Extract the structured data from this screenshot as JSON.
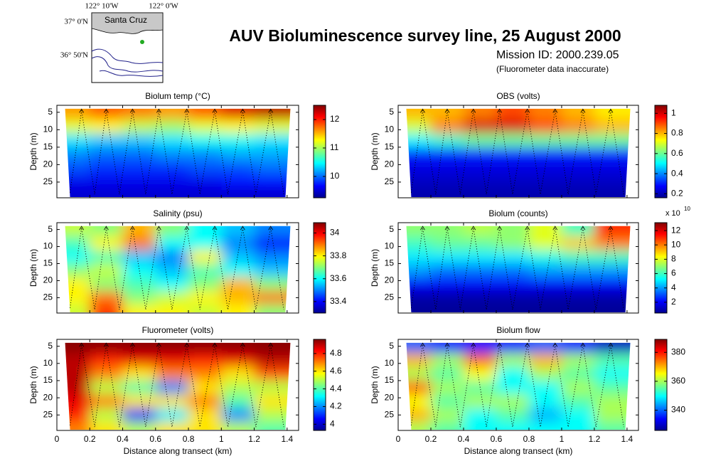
{
  "title": "AUV Bioluminescence survey line, 25 August 2000",
  "mission_id": "Mission ID: 2000.239.05",
  "note": "(Fluorometer data inaccurate)",
  "map": {
    "lon_labels": [
      "122° 10'W",
      "122° 0'W"
    ],
    "lat_labels": [
      "37° 0'N",
      "36° 50'N"
    ],
    "place": "Santa Cruz"
  },
  "chart_data": [
    {
      "type": "heatmap",
      "title": "Biolum temp (°C)",
      "ylabel": "Depth (m)",
      "colormap": "jet",
      "xlim": [
        0,
        1.47
      ],
      "ylim": [
        29.5,
        3
      ],
      "xticks": [
        0,
        0.2,
        0.4,
        0.6,
        0.8,
        1,
        1.2,
        1.4
      ],
      "yticks": [
        5,
        10,
        15,
        20,
        25
      ],
      "clim": [
        9.25,
        12.5
      ],
      "cticks": [
        10,
        11,
        12
      ],
      "x": [
        0.1,
        0.3,
        0.5,
        0.7,
        0.9,
        1.1,
        1.3
      ],
      "y": [
        5,
        9,
        13,
        17,
        21,
        25,
        29
      ],
      "z": [
        [
          11.6,
          11.8,
          11.7,
          11.6,
          11.8,
          12.2,
          12.3
        ],
        [
          11.2,
          11.3,
          11.1,
          11.0,
          11.2,
          11.3,
          11.2
        ],
        [
          10.4,
          10.3,
          10.3,
          10.4,
          10.5,
          10.5,
          10.4
        ],
        [
          10.1,
          10.0,
          10.0,
          10.1,
          10.1,
          10.2,
          10.2
        ],
        [
          9.9,
          9.8,
          9.8,
          9.8,
          9.9,
          9.9,
          10.0
        ],
        [
          9.6,
          9.6,
          9.6,
          9.6,
          9.6,
          9.7,
          9.7
        ],
        [
          9.5,
          9.5,
          9.5,
          9.5,
          9.5,
          9.5,
          9.5
        ]
      ]
    },
    {
      "type": "heatmap",
      "title": "OBS (volts)",
      "ylabel": "Depth (m)",
      "colormap": "jet",
      "xlim": [
        0,
        1.47
      ],
      "ylim": [
        29.5,
        3
      ],
      "xticks": [
        0,
        0.2,
        0.4,
        0.6,
        0.8,
        1,
        1.2,
        1.4
      ],
      "yticks": [
        5,
        10,
        15,
        20,
        25
      ],
      "clim": [
        0.16,
        1.08
      ],
      "cticks": [
        0.2,
        0.4,
        0.6,
        0.8,
        1
      ],
      "x": [
        0.1,
        0.3,
        0.5,
        0.7,
        0.9,
        1.1,
        1.3
      ],
      "y": [
        5,
        9,
        13,
        17,
        21,
        25,
        29
      ],
      "z": [
        [
          0.8,
          0.8,
          0.85,
          0.9,
          0.85,
          0.8,
          0.75
        ],
        [
          0.7,
          0.85,
          1.0,
          1.0,
          0.9,
          0.85,
          0.8
        ],
        [
          0.5,
          0.55,
          0.6,
          0.6,
          0.6,
          0.6,
          0.6
        ],
        [
          0.3,
          0.3,
          0.3,
          0.3,
          0.3,
          0.3,
          0.3
        ],
        [
          0.25,
          0.25,
          0.25,
          0.25,
          0.25,
          0.25,
          0.25
        ],
        [
          0.22,
          0.22,
          0.22,
          0.22,
          0.22,
          0.22,
          0.22
        ],
        [
          0.2,
          0.2,
          0.2,
          0.2,
          0.2,
          0.2,
          0.2
        ]
      ]
    },
    {
      "type": "heatmap",
      "title": "Salinity (psu)",
      "ylabel": "Depth (m)",
      "colormap": "jet",
      "xlim": [
        0,
        1.47
      ],
      "ylim": [
        29.5,
        3
      ],
      "xticks": [
        0,
        0.2,
        0.4,
        0.6,
        0.8,
        1,
        1.2,
        1.4
      ],
      "yticks": [
        5,
        10,
        15,
        20,
        25
      ],
      "clim": [
        33.3,
        34.09
      ],
      "cticks": [
        33.4,
        33.6,
        33.8,
        34
      ],
      "x": [
        0.1,
        0.3,
        0.5,
        0.7,
        0.9,
        1.1,
        1.3
      ],
      "y": [
        5,
        9,
        13,
        17,
        21,
        25,
        29
      ],
      "z": [
        [
          33.75,
          33.7,
          33.85,
          33.7,
          33.6,
          33.55,
          33.5
        ],
        [
          33.65,
          33.8,
          33.9,
          33.6,
          33.6,
          33.5,
          33.4
        ],
        [
          33.6,
          33.65,
          33.55,
          33.5,
          33.8,
          33.55,
          33.5
        ],
        [
          33.7,
          33.75,
          33.6,
          33.55,
          33.65,
          33.6,
          33.55
        ],
        [
          33.8,
          33.7,
          33.65,
          33.6,
          33.7,
          33.85,
          33.7
        ],
        [
          33.8,
          33.9,
          33.7,
          33.75,
          33.8,
          33.85,
          33.9
        ],
        [
          33.75,
          33.95,
          33.8,
          33.8,
          33.75,
          33.8,
          33.7
        ]
      ]
    },
    {
      "type": "heatmap",
      "title": "Biolum (counts)",
      "ylabel": "Depth (m)",
      "colormap": "jet",
      "xlim": [
        0,
        1.47
      ],
      "ylim": [
        29.5,
        3
      ],
      "xticks": [
        0,
        0.2,
        0.4,
        0.6,
        0.8,
        1,
        1.2,
        1.4
      ],
      "yticks": [
        5,
        10,
        15,
        20,
        25
      ],
      "clim": [
        0.5,
        13.1
      ],
      "cticks": [
        2,
        4,
        6,
        8,
        10,
        12
      ],
      "multiplier": "x 10",
      "multiplier_power": "10",
      "x": [
        0.1,
        0.3,
        0.5,
        0.7,
        0.9,
        1.1,
        1.3
      ],
      "y": [
        5,
        9,
        13,
        17,
        21,
        25,
        29
      ],
      "z": [
        [
          7,
          7,
          7.5,
          7,
          8,
          6,
          11
        ],
        [
          6,
          6.5,
          6.5,
          7,
          8,
          9,
          10
        ],
        [
          5,
          5,
          5,
          5,
          5.5,
          6,
          6
        ],
        [
          4,
          3.5,
          3.5,
          3.5,
          4,
          4,
          4
        ],
        [
          2,
          2,
          2,
          2,
          2,
          2,
          2
        ],
        [
          1,
          1,
          1,
          1,
          1,
          1,
          1
        ],
        [
          0.8,
          0.8,
          0.8,
          0.8,
          0.8,
          0.8,
          0.8
        ]
      ]
    },
    {
      "type": "heatmap",
      "title": "Fluorometer (volts)",
      "ylabel": "Depth (m)",
      "xlabel": "Distance along transect (km)",
      "colormap": "jet",
      "xlim": [
        0,
        1.47
      ],
      "ylim": [
        29.5,
        3
      ],
      "xticks": [
        0,
        0.2,
        0.4,
        0.6,
        0.8,
        1,
        1.2,
        1.4
      ],
      "yticks": [
        5,
        10,
        15,
        20,
        25
      ],
      "clim": [
        3.93,
        4.96
      ],
      "cticks": [
        4,
        4.2,
        4.4,
        4.6,
        4.8
      ],
      "x": [
        0.1,
        0.3,
        0.5,
        0.7,
        0.9,
        1.1,
        1.3
      ],
      "y": [
        5,
        9,
        13,
        17,
        21,
        25,
        29
      ],
      "z": [
        [
          4.95,
          4.95,
          4.95,
          4.95,
          4.95,
          4.95,
          4.95
        ],
        [
          4.9,
          4.8,
          4.85,
          4.85,
          4.8,
          4.85,
          4.9
        ],
        [
          4.9,
          4.7,
          4.6,
          4.7,
          4.7,
          4.6,
          4.75
        ],
        [
          4.9,
          4.5,
          4.4,
          4.2,
          4.6,
          4.5,
          4.5
        ],
        [
          4.85,
          4.7,
          4.6,
          4.6,
          4.7,
          4.4,
          4.6
        ],
        [
          4.8,
          4.5,
          4.1,
          4.3,
          4.6,
          4.2,
          4.5
        ],
        [
          4.7,
          4.6,
          4.5,
          4.6,
          4.6,
          4.5,
          4.4
        ]
      ]
    },
    {
      "type": "heatmap",
      "title": "Biolum flow",
      "ylabel": "Depth (m)",
      "xlabel": "Distance along transect (km)",
      "colormap": "jet",
      "xlim": [
        0,
        1.47
      ],
      "ylim": [
        29.5,
        3
      ],
      "xticks": [
        0,
        0.2,
        0.4,
        0.6,
        0.8,
        1,
        1.2,
        1.4
      ],
      "yticks": [
        5,
        10,
        15,
        20,
        25
      ],
      "clim": [
        326,
        389
      ],
      "cticks": [
        340,
        360,
        380
      ],
      "x": [
        0.1,
        0.3,
        0.5,
        0.7,
        0.9,
        1.1,
        1.3
      ],
      "y": [
        5,
        9,
        13,
        17,
        21,
        25,
        29
      ],
      "z": [
        [
          340,
          335,
          335,
          335,
          340,
          335,
          330
        ],
        [
          370,
          360,
          375,
          360,
          370,
          360,
          355
        ],
        [
          360,
          355,
          365,
          350,
          360,
          355,
          350
        ],
        [
          375,
          360,
          355,
          350,
          350,
          360,
          355
        ],
        [
          365,
          355,
          360,
          360,
          350,
          355,
          360
        ],
        [
          370,
          360,
          350,
          355,
          345,
          350,
          360
        ],
        [
          360,
          355,
          350,
          350,
          350,
          350,
          355
        ]
      ]
    }
  ]
}
